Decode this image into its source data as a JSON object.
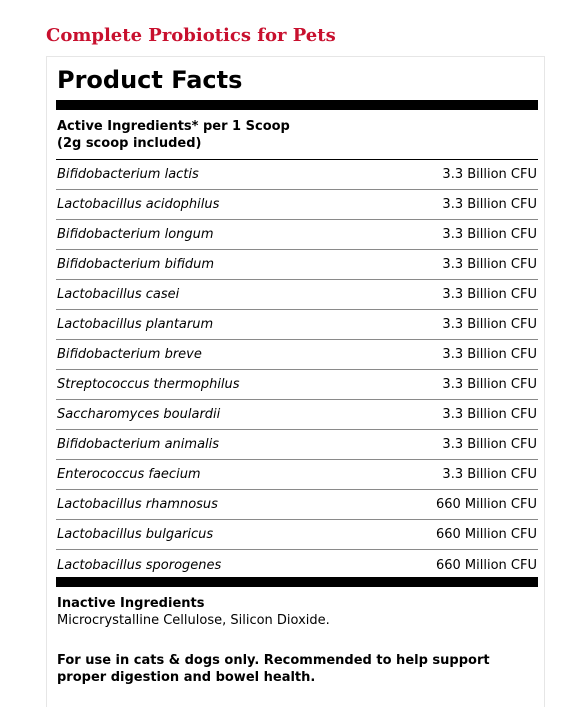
{
  "page_title": "Complete Probiotics for Pets",
  "facts": {
    "heading": "Product Facts",
    "active_header_line1": "Active Ingredients* per 1 Scoop",
    "active_header_line2": "(2g scoop included)",
    "ingredients": [
      {
        "name": "Bifidobacterium lactis",
        "amount": "3.3 Billion CFU"
      },
      {
        "name": "Lactobacillus acidophilus",
        "amount": "3.3 Billion CFU"
      },
      {
        "name": "Bifidobacterium longum",
        "amount": "3.3 Billion CFU"
      },
      {
        "name": "Bifidobacterium bifidum",
        "amount": "3.3 Billion CFU"
      },
      {
        "name": "Lactobacillus casei",
        "amount": "3.3 Billion CFU"
      },
      {
        "name": "Lactobacillus plantarum",
        "amount": "3.3 Billion CFU"
      },
      {
        "name": "Bifidobacterium breve",
        "amount": "3.3 Billion CFU"
      },
      {
        "name": "Streptococcus thermophilus",
        "amount": "3.3 Billion CFU"
      },
      {
        "name": "Saccharomyces boulardii",
        "amount": "3.3 Billion CFU"
      },
      {
        "name": "Bifidobacterium animalis",
        "amount": "3.3 Billion CFU"
      },
      {
        "name": "Enterococcus faecium",
        "amount": "3.3 Billion CFU"
      },
      {
        "name": "Lactobacillus rhamnosus",
        "amount": "660 Million CFU"
      },
      {
        "name": "Lactobacillus bulgaricus",
        "amount": "660 Million CFU"
      },
      {
        "name": "Lactobacillus sporogenes",
        "amount": "660 Million CFU"
      }
    ],
    "inactive_title": "Inactive Ingredients",
    "inactive_text": "Microcrystalline Cellulose, Silicon Dioxide.",
    "usage_note": "For use in cats & dogs only. Recommended to help support proper digestion and bowel health."
  },
  "colors": {
    "title_red": "#c8102e",
    "bar_black": "#000000"
  }
}
